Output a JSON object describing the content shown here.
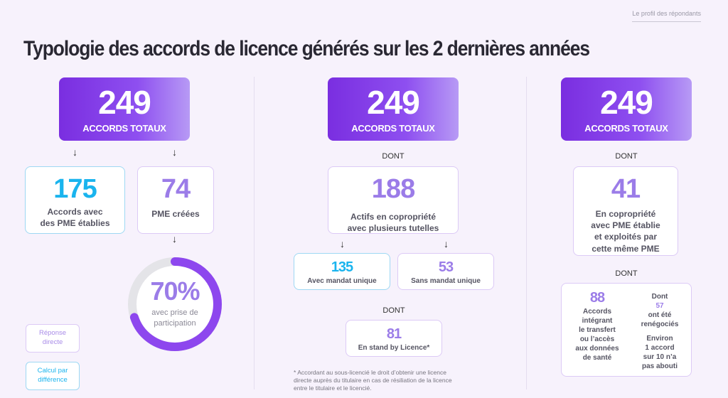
{
  "header": {
    "section": "Le profil des répondants"
  },
  "title": "Typologie des accords de licence générés sur les 2 dernières années",
  "col1": {
    "total_num": "249",
    "total_label": "ACCORDS TOTAUX",
    "arrow": "↓",
    "box1_num": "175",
    "box1_label1": "Accords avec",
    "box1_label2": "des PME établies",
    "box2_num": "74",
    "box2_label": "PME créées",
    "donut_value": "70%",
    "donut_fraction": 0.7,
    "donut_label1": "avec prise de",
    "donut_label2": "participation"
  },
  "legend": {
    "direct1": "Réponse",
    "direct2": "directe",
    "diff1": "Calcul par",
    "diff2": "différence"
  },
  "col2": {
    "total_num": "249",
    "total_label": "ACCORDS TOTAUX",
    "dont": "DONT",
    "arrow": "↓",
    "box_num": "188",
    "box_label1": "Actifs en copropriété",
    "box_label2": "avec plusieurs tutelles",
    "sub1_num": "135",
    "sub1_label": "Avec mandat unique",
    "sub2_num": "53",
    "sub2_label": "Sans mandat unique",
    "dont2": "DONT",
    "sub3_num": "81",
    "sub3_label": "En stand by Licence*",
    "footnote1": "* Accordant au sous-licencié le droit d’obtenir une licence",
    "footnote2": "directe auprès du titulaire en cas de résiliation de la licence",
    "footnote3": "entre le titulaire et le licencié."
  },
  "col3": {
    "total_num": "249",
    "total_label": "ACCORDS TOTAUX",
    "dont": "DONT",
    "box_num": "41",
    "box_label1": "En copropriété",
    "box_label2": "avec PME établie",
    "box_label3": "et exploités par",
    "box_label4": "cette même PME",
    "dont2": "DONT",
    "left_num": "88",
    "left_l1": "Accords",
    "left_l2": "intégrant",
    "left_l3": "le transfert",
    "left_l4": "ou l’accès",
    "left_l5": "aux données",
    "left_l6": "de santé",
    "right_a1": "Dont",
    "right_num": "57",
    "right_a2": "ont été",
    "right_a3": "renégociés",
    "right_b1": "Environ",
    "right_b2": "1 accord",
    "right_b3": "sur 10 n’a",
    "right_b4": "pas abouti"
  },
  "colors": {
    "blue": "#1ab4ee",
    "purple": "#9b7ce8",
    "accent": "#7a2ee0",
    "donut_track": "#e4e4e8"
  }
}
